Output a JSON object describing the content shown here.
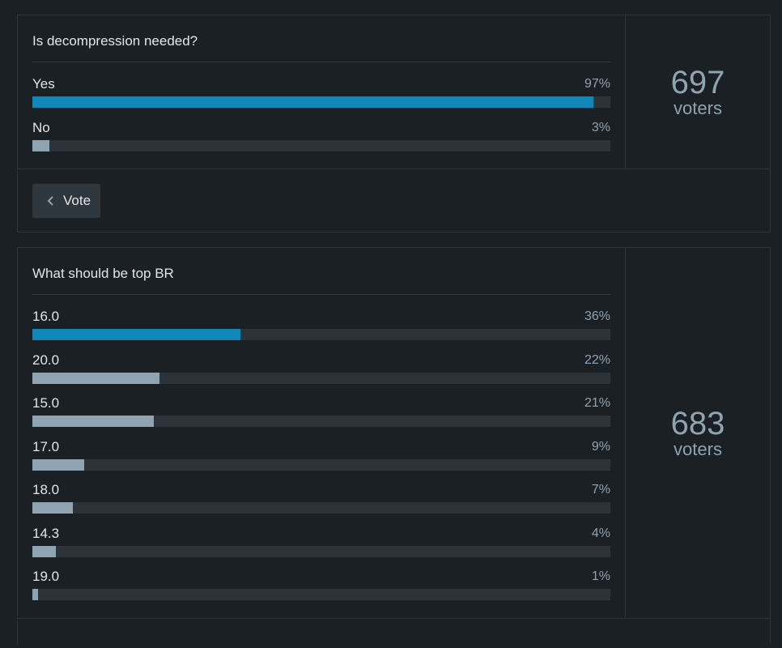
{
  "polls": [
    {
      "question": "Is decompression needed?",
      "options": [
        {
          "label": "Yes",
          "percent_label": "97%",
          "percent": 97
        },
        {
          "label": "No",
          "percent_label": "3%",
          "percent": 3
        }
      ],
      "voters_count": "697",
      "voters_label": "voters",
      "vote_button_label": "Vote"
    },
    {
      "question": "What should be top BR",
      "options": [
        {
          "label": "16.0",
          "percent_label": "36%",
          "percent": 36
        },
        {
          "label": "20.0",
          "percent_label": "22%",
          "percent": 22
        },
        {
          "label": "15.0",
          "percent_label": "21%",
          "percent": 21
        },
        {
          "label": "17.0",
          "percent_label": "9%",
          "percent": 9
        },
        {
          "label": "18.0",
          "percent_label": "7%",
          "percent": 7
        },
        {
          "label": "14.3",
          "percent_label": "4%",
          "percent": 4
        },
        {
          "label": "19.0",
          "percent_label": "1%",
          "percent": 1
        }
      ],
      "voters_count": "683",
      "voters_label": "voters"
    }
  ],
  "colors": {
    "background": "#1b2024",
    "leading_bar": "#1187b8",
    "other_bar": "#8fa3b0",
    "track": "#2c343a",
    "muted_text": "#8fa3b0"
  },
  "icons": {
    "vote_button": "chevron-left-icon"
  }
}
